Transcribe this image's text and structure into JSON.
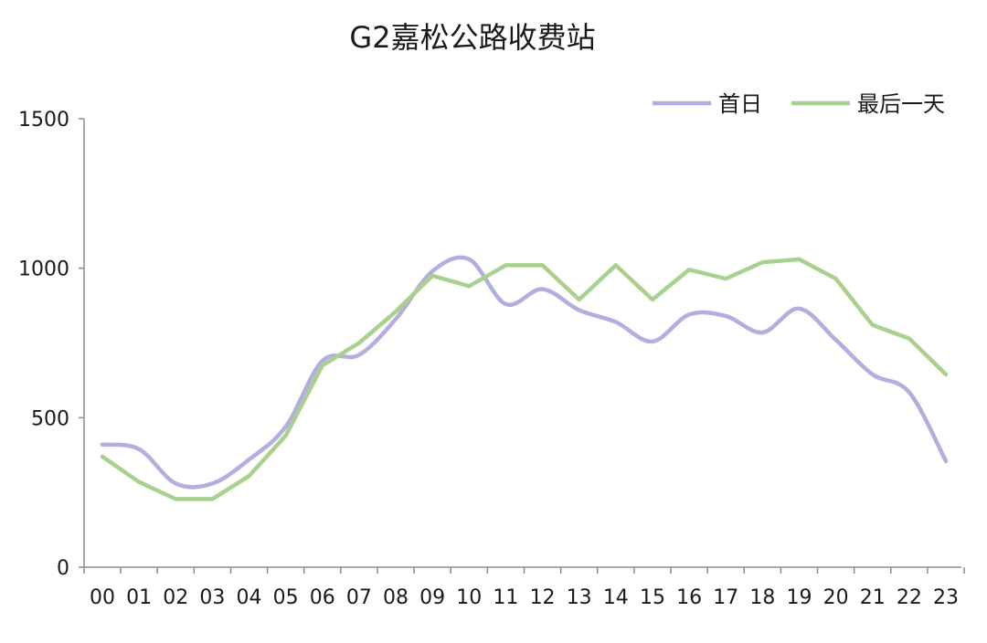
{
  "chart_data": {
    "type": "line",
    "title": "G2嘉松公路收费站",
    "xlabel": "",
    "ylabel": "",
    "ylim": [
      0,
      1500
    ],
    "yticks": [
      0,
      500,
      1000,
      1500
    ],
    "grid": false,
    "legend_position": "top-right",
    "categories": [
      "00",
      "01",
      "02",
      "03",
      "04",
      "05",
      "06",
      "07",
      "08",
      "09",
      "10",
      "11",
      "12",
      "13",
      "14",
      "15",
      "16",
      "17",
      "18",
      "19",
      "20",
      "21",
      "22",
      "23"
    ],
    "series": [
      {
        "name": "首日",
        "color": "#b3aee0",
        "smooth": true,
        "values": [
          410,
          395,
          280,
          280,
          360,
          470,
          690,
          710,
          830,
          990,
          1030,
          880,
          930,
          860,
          820,
          755,
          845,
          840,
          785,
          865,
          760,
          645,
          585,
          355
        ]
      },
      {
        "name": "最后一天",
        "color": "#a9d18e",
        "smooth": false,
        "values": [
          370,
          285,
          228,
          228,
          305,
          440,
          675,
          750,
          855,
          975,
          940,
          1010,
          1010,
          895,
          1010,
          895,
          995,
          965,
          1020,
          1030,
          965,
          810,
          765,
          645
        ]
      }
    ]
  }
}
